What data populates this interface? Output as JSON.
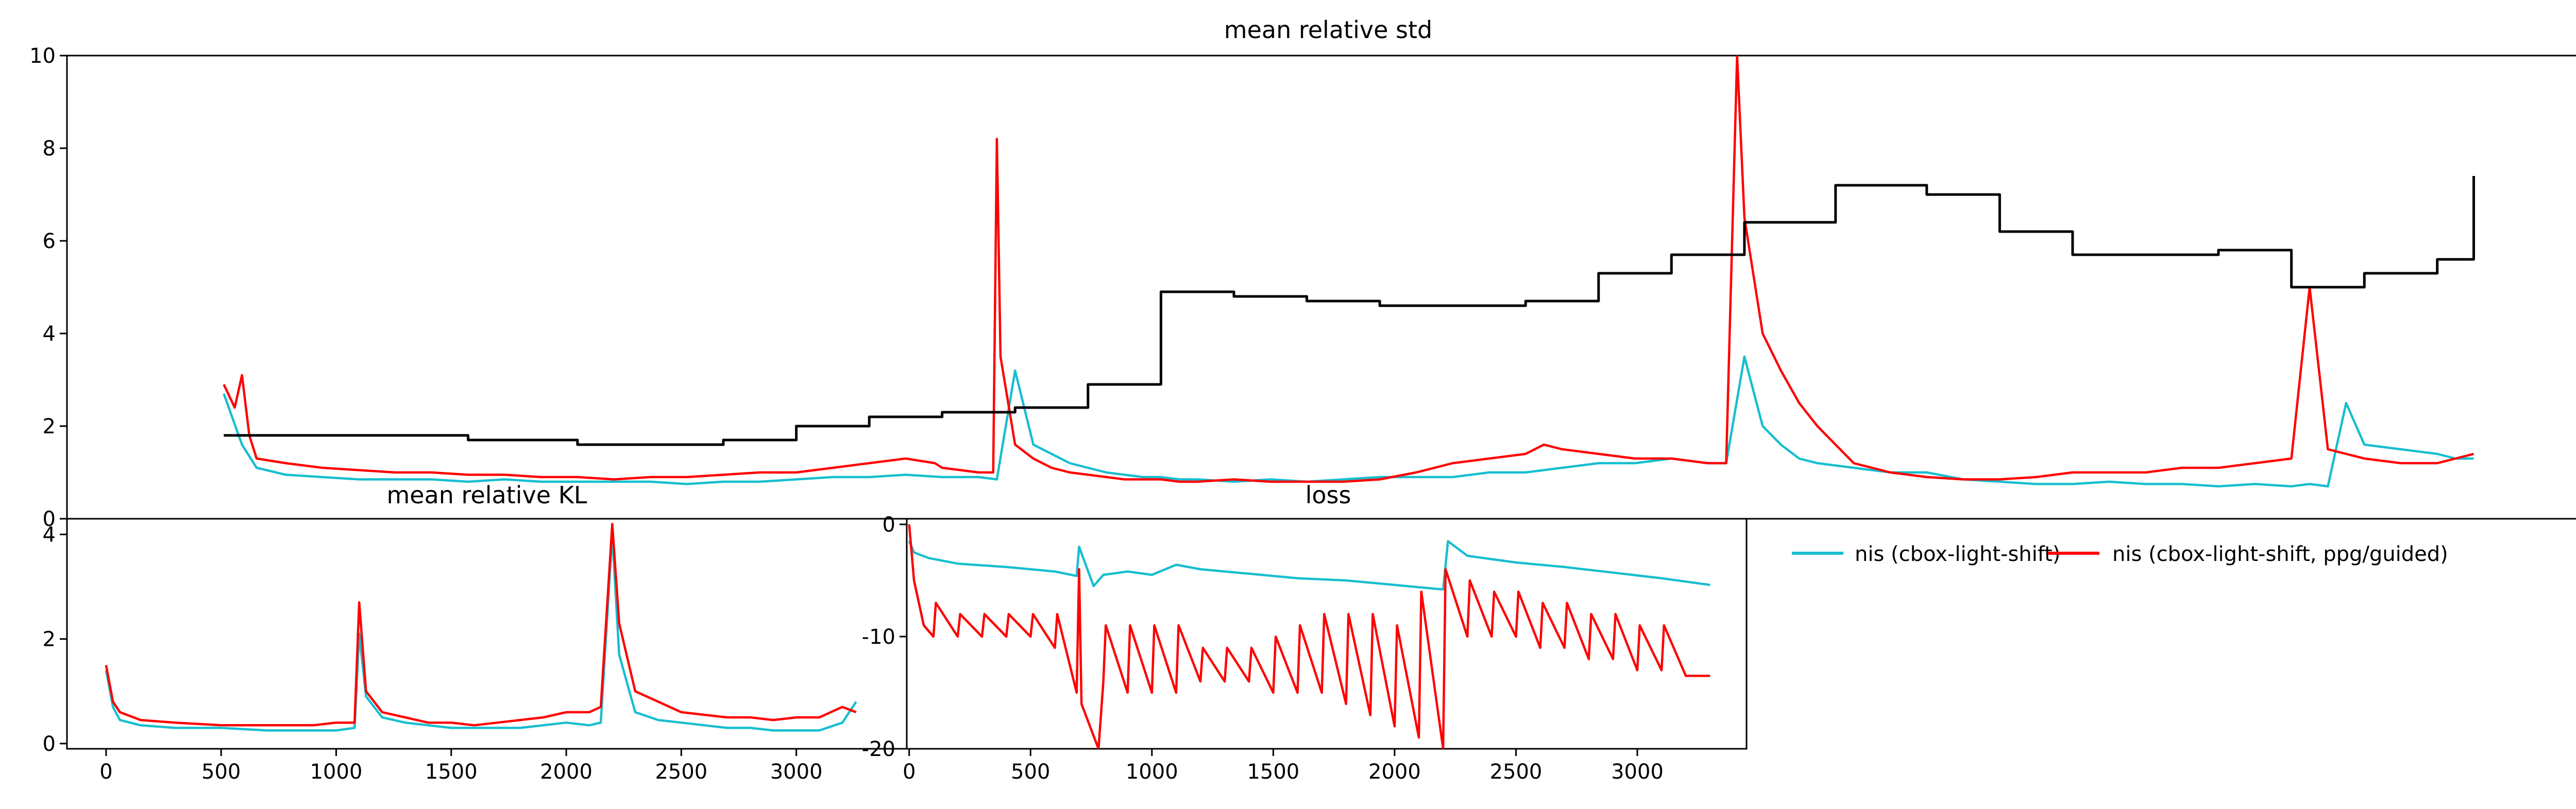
{
  "colors": {
    "series_nis": "#17becf",
    "series_guided": "#ff0000",
    "series_std_step": "#000000"
  },
  "legend": {
    "placement": "top-left",
    "entries": [
      "nis (cbox-light-shift)",
      "nis (cbox-light-shift, ppg/guided)"
    ]
  },
  "chart_data": [
    {
      "id": "std",
      "type": "line",
      "title": "mean relative std",
      "xlim": [
        -100,
        6820
      ],
      "ylim": [
        0,
        10
      ],
      "yticks": [
        0,
        2,
        4,
        6,
        8,
        10
      ],
      "xticks": [],
      "grid": false,
      "series": [
        {
          "color": "#17becf",
          "x": [
            330,
            380,
            420,
            500,
            600,
            700,
            800,
            900,
            1000,
            1100,
            1200,
            1300,
            1400,
            1500,
            1600,
            1700,
            1800,
            1900,
            2000,
            2100,
            2200,
            2300,
            2400,
            2450,
            2500,
            2550,
            2600,
            2650,
            2700,
            2750,
            2800,
            2850,
            2900,
            2950,
            3000,
            3100,
            3200,
            3300,
            3400,
            3500,
            3600,
            3700,
            3800,
            3900,
            4000,
            4100,
            4200,
            4300,
            4400,
            4450,
            4500,
            4550,
            4600,
            4650,
            4700,
            4800,
            4900,
            5000,
            5100,
            5200,
            5300,
            5400,
            5500,
            5600,
            5700,
            5800,
            5900,
            6000,
            6050,
            6100,
            6150,
            6200,
            6300,
            6400,
            6450,
            6500
          ],
          "y": [
            2.7,
            1.6,
            1.1,
            0.95,
            0.9,
            0.85,
            0.85,
            0.85,
            0.8,
            0.85,
            0.8,
            0.8,
            0.8,
            0.8,
            0.75,
            0.8,
            0.8,
            0.85,
            0.9,
            0.9,
            0.95,
            0.9,
            0.9,
            0.85,
            3.2,
            1.6,
            1.4,
            1.2,
            1.1,
            1.0,
            0.95,
            0.9,
            0.9,
            0.85,
            0.85,
            0.8,
            0.85,
            0.8,
            0.85,
            0.9,
            0.9,
            0.9,
            1.0,
            1.0,
            1.1,
            1.2,
            1.2,
            1.3,
            1.2,
            1.2,
            3.5,
            2.0,
            1.6,
            1.3,
            1.2,
            1.1,
            1.0,
            1.0,
            0.85,
            0.8,
            0.75,
            0.75,
            0.8,
            0.75,
            0.75,
            0.7,
            0.75,
            0.7,
            0.75,
            0.7,
            2.5,
            1.6,
            1.5,
            1.4,
            1.3,
            1.3
          ]
        },
        {
          "color": "#ff0000",
          "x": [
            330,
            360,
            380,
            400,
            420,
            500,
            600,
            700,
            800,
            900,
            1000,
            1100,
            1200,
            1300,
            1400,
            1500,
            1600,
            1700,
            1800,
            1900,
            2000,
            2100,
            2200,
            2280,
            2300,
            2400,
            2440,
            2450,
            2460,
            2500,
            2550,
            2600,
            2650,
            2700,
            2750,
            2800,
            2850,
            2900,
            2950,
            3000,
            3100,
            3200,
            3300,
            3400,
            3500,
            3600,
            3700,
            3800,
            3900,
            3950,
            4000,
            4100,
            4200,
            4300,
            4400,
            4450,
            4480,
            4500,
            4550,
            4600,
            4650,
            4700,
            4750,
            4800,
            4900,
            5000,
            5100,
            5200,
            5300,
            5400,
            5500,
            5600,
            5700,
            5800,
            5900,
            6000,
            6050,
            6100,
            6150,
            6200,
            6300,
            6400,
            6450,
            6500
          ],
          "y": [
            2.9,
            2.4,
            3.1,
            1.8,
            1.3,
            1.2,
            1.1,
            1.05,
            1.0,
            1.0,
            0.95,
            0.95,
            0.9,
            0.9,
            0.85,
            0.9,
            0.9,
            0.95,
            1.0,
            1.0,
            1.1,
            1.2,
            1.3,
            1.2,
            1.1,
            1.0,
            1.0,
            8.2,
            3.5,
            1.6,
            1.3,
            1.1,
            1.0,
            0.95,
            0.9,
            0.85,
            0.85,
            0.85,
            0.8,
            0.8,
            0.85,
            0.8,
            0.8,
            0.8,
            0.85,
            1.0,
            1.2,
            1.3,
            1.4,
            1.6,
            1.5,
            1.4,
            1.3,
            1.3,
            1.2,
            1.2,
            10.0,
            6.5,
            4.0,
            3.2,
            2.5,
            2.0,
            1.6,
            1.2,
            1.0,
            0.9,
            0.85,
            0.85,
            0.9,
            1.0,
            1.0,
            1.0,
            1.1,
            1.1,
            1.2,
            1.3,
            5.0,
            1.5,
            1.4,
            1.3,
            1.2,
            1.2,
            1.3,
            1.4
          ]
        },
        {
          "color": "#000000",
          "step": true,
          "x": [
            330,
            600,
            1000,
            1300,
            1700,
            1900,
            2100,
            2300,
            2500,
            2700,
            2900,
            3100,
            3300,
            3500,
            3700,
            3900,
            4100,
            4300,
            4500,
            4750,
            5000,
            5200,
            5400,
            5800,
            6000,
            6200,
            6400,
            6500
          ],
          "y": [
            1.8,
            1.8,
            1.7,
            1.6,
            1.7,
            2.0,
            2.2,
            2.3,
            2.4,
            2.9,
            4.9,
            4.8,
            4.7,
            4.6,
            4.6,
            4.7,
            5.3,
            5.7,
            6.4,
            7.2,
            7.0,
            6.2,
            5.7,
            5.8,
            5.0,
            5.3,
            5.6,
            7.4
          ]
        }
      ]
    },
    {
      "id": "kl",
      "type": "line",
      "title": "mean relative KL",
      "xlim": [
        -170,
        3480
      ],
      "ylim": [
        -0.1,
        4.3
      ],
      "xticks": [
        0,
        500,
        1000,
        1500,
        2000,
        2500,
        3000
      ],
      "yticks": [
        0,
        2,
        4
      ],
      "grid": false,
      "series": [
        {
          "color": "#17becf",
          "x": [
            0,
            30,
            60,
            150,
            300,
            500,
            700,
            900,
            1000,
            1080,
            1100,
            1130,
            1200,
            1300,
            1400,
            1500,
            1600,
            1700,
            1800,
            1900,
            2000,
            2100,
            2150,
            2200,
            2230,
            2300,
            2400,
            2500,
            2600,
            2700,
            2800,
            2900,
            3000,
            3100,
            3200,
            3260
          ],
          "y": [
            1.4,
            0.7,
            0.45,
            0.35,
            0.3,
            0.3,
            0.25,
            0.25,
            0.25,
            0.3,
            2.1,
            0.9,
            0.5,
            0.4,
            0.35,
            0.3,
            0.3,
            0.3,
            0.3,
            0.35,
            0.4,
            0.35,
            0.4,
            4.0,
            1.7,
            0.6,
            0.45,
            0.4,
            0.35,
            0.3,
            0.3,
            0.25,
            0.25,
            0.25,
            0.4,
            0.8
          ]
        },
        {
          "color": "#ff0000",
          "x": [
            0,
            30,
            60,
            150,
            300,
            500,
            700,
            900,
            1000,
            1080,
            1100,
            1130,
            1200,
            1300,
            1400,
            1500,
            1600,
            1700,
            1800,
            1900,
            2000,
            2100,
            2150,
            2200,
            2230,
            2300,
            2400,
            2500,
            2600,
            2700,
            2800,
            2900,
            3000,
            3100,
            3200,
            3260
          ],
          "y": [
            1.5,
            0.8,
            0.6,
            0.45,
            0.4,
            0.35,
            0.35,
            0.35,
            0.4,
            0.4,
            2.7,
            1.0,
            0.6,
            0.5,
            0.4,
            0.4,
            0.35,
            0.4,
            0.45,
            0.5,
            0.6,
            0.6,
            0.7,
            4.2,
            2.3,
            1.0,
            0.8,
            0.6,
            0.55,
            0.5,
            0.5,
            0.45,
            0.5,
            0.5,
            0.7,
            0.6
          ]
        }
      ]
    },
    {
      "id": "loss",
      "type": "line",
      "title": "loss",
      "xlim": [
        -10,
        3450
      ],
      "ylim": [
        -20,
        0.5
      ],
      "xticks": [
        0,
        500,
        1000,
        1500,
        2000,
        2500,
        3000
      ],
      "yticks": [
        0,
        -10,
        -20
      ],
      "grid": false,
      "series": [
        {
          "color": "#17becf",
          "x": [
            0,
            20,
            80,
            200,
            400,
            600,
            690,
            700,
            760,
            800,
            900,
            1000,
            1100,
            1200,
            1400,
            1600,
            1800,
            2000,
            2200,
            2220,
            2300,
            2500,
            2700,
            2900,
            3100,
            3300
          ],
          "y": [
            -1.5,
            -2.5,
            -3.0,
            -3.5,
            -3.8,
            -4.2,
            -4.6,
            -2.0,
            -5.5,
            -4.5,
            -4.2,
            -4.5,
            -3.6,
            -4.0,
            -4.4,
            -4.8,
            -5.0,
            -5.4,
            -5.8,
            -1.5,
            -2.8,
            -3.4,
            -3.8,
            -4.3,
            -4.8,
            -5.4
          ]
        },
        {
          "color": "#ff0000",
          "x": [
            0,
            20,
            60,
            100,
            110,
            200,
            210,
            300,
            310,
            400,
            410,
            500,
            510,
            600,
            610,
            690,
            700,
            710,
            780,
            800,
            810,
            900,
            910,
            1000,
            1010,
            1100,
            1110,
            1200,
            1210,
            1300,
            1310,
            1400,
            1410,
            1500,
            1510,
            1600,
            1610,
            1700,
            1710,
            1800,
            1810,
            1900,
            1910,
            2000,
            2010,
            2100,
            2110,
            2200,
            2210,
            2300,
            2310,
            2400,
            2410,
            2500,
            2510,
            2600,
            2610,
            2700,
            2710,
            2800,
            2810,
            2900,
            2910,
            3000,
            3010,
            3100,
            3110,
            3200,
            3300
          ],
          "y": [
            0,
            -5,
            -9,
            -10,
            -7,
            -10,
            -8,
            -10,
            -8,
            -10,
            -8,
            -10,
            -8,
            -11,
            -8,
            -15,
            -4,
            -16,
            -20,
            -14,
            -9,
            -15,
            -9,
            -15,
            -9,
            -15,
            -9,
            -14,
            -11,
            -14,
            -11,
            -14,
            -11,
            -15,
            -10,
            -15,
            -9,
            -15,
            -8,
            -16,
            -8,
            -17,
            -8,
            -18,
            -9,
            -19,
            -6,
            -20,
            -4,
            -10,
            -5,
            -10,
            -6,
            -10,
            -6,
            -11,
            -7,
            -11,
            -7,
            -12,
            -8,
            -12,
            -8,
            -13,
            -9,
            -13,
            -9,
            -13.5,
            -13.5
          ]
        }
      ]
    }
  ]
}
